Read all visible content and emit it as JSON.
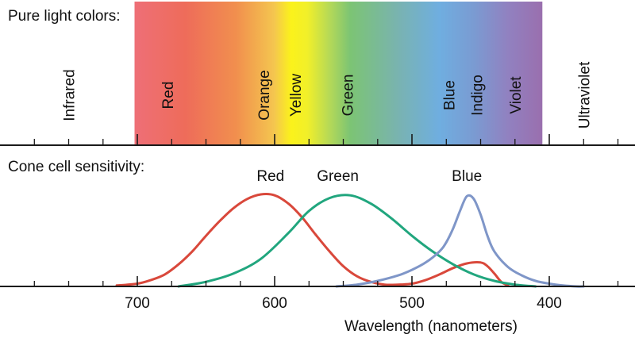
{
  "spectrum_panel": {
    "heading": "Pure light colors:",
    "range_labels": [
      {
        "id": "infrared",
        "text": "Infrared",
        "nm": 750
      },
      {
        "id": "ultraviolet",
        "text": "Ultraviolet",
        "nm": 375
      }
    ],
    "color_labels": [
      {
        "id": "red",
        "text": "Red",
        "nm": 678
      },
      {
        "id": "orange",
        "text": "Orange",
        "nm": 608
      },
      {
        "id": "yellow",
        "text": "Yellow",
        "nm": 585
      },
      {
        "id": "green",
        "text": "Green",
        "nm": 547
      },
      {
        "id": "blue",
        "text": "Blue",
        "nm": 473
      },
      {
        "id": "indigo",
        "text": "Indigo",
        "nm": 453
      },
      {
        "id": "violet",
        "text": "Violet",
        "nm": 425
      }
    ],
    "visible_range_nm": [
      702,
      405
    ],
    "gradient_stops": [
      {
        "nm": 702,
        "color": "#ee6f77"
      },
      {
        "nm": 665,
        "color": "#ee6c5a"
      },
      {
        "nm": 628,
        "color": "#f18f4e"
      },
      {
        "nm": 600,
        "color": "#f4c64f"
      },
      {
        "nm": 588,
        "color": "#fbf21b"
      },
      {
        "nm": 576,
        "color": "#f1ef2a"
      },
      {
        "nm": 560,
        "color": "#b5d957"
      },
      {
        "nm": 545,
        "color": "#7cc474"
      },
      {
        "nm": 510,
        "color": "#79b3b0"
      },
      {
        "nm": 480,
        "color": "#6faee0"
      },
      {
        "nm": 455,
        "color": "#7a9bd2"
      },
      {
        "nm": 430,
        "color": "#9181c0"
      },
      {
        "nm": 405,
        "color": "#9a6fae"
      }
    ]
  },
  "sensitivity_panel": {
    "heading": "Cone cell sensitivity:",
    "curve_labels": [
      {
        "id": "red",
        "text": "Red",
        "nm": 603
      },
      {
        "id": "green",
        "text": "Green",
        "nm": 554
      },
      {
        "id": "blue",
        "text": "Blue",
        "nm": 460
      }
    ]
  },
  "axis": {
    "title": "Wavelength (nanometers)",
    "xlim": [
      800,
      340
    ],
    "major_ticks": [
      700,
      600,
      500,
      400
    ],
    "minor_ticks": [
      775,
      750,
      725,
      675,
      650,
      625,
      575,
      550,
      525,
      475,
      450,
      425,
      375,
      350
    ]
  },
  "chart_data": {
    "type": "line",
    "xlabel": "Wavelength (nanometers)",
    "ylabel": "",
    "xlim": [
      800,
      340
    ],
    "ylim": [
      0,
      1
    ],
    "series": [
      {
        "name": "Red",
        "color": "#d9483b",
        "x": [
          715,
          700,
          690,
          680,
          670,
          660,
          650,
          640,
          630,
          620,
          610,
          600,
          590,
          580,
          570,
          560,
          550,
          540,
          530,
          520,
          510,
          500,
          490,
          480,
          470,
          460,
          450,
          445,
          440,
          435,
          430
        ],
        "y": [
          0.01,
          0.03,
          0.07,
          0.13,
          0.24,
          0.38,
          0.55,
          0.71,
          0.85,
          0.95,
          1.0,
          0.99,
          0.9,
          0.75,
          0.56,
          0.38,
          0.22,
          0.11,
          0.05,
          0.02,
          0.02,
          0.03,
          0.07,
          0.13,
          0.2,
          0.25,
          0.26,
          0.22,
          0.14,
          0.05,
          0.01
        ]
      },
      {
        "name": "Green",
        "color": "#21a67e",
        "x": [
          670,
          650,
          630,
          610,
          590,
          575,
          560,
          545,
          530,
          515,
          500,
          485,
          470,
          455,
          440,
          425,
          410
        ],
        "y": [
          0.0,
          0.05,
          0.14,
          0.3,
          0.58,
          0.82,
          0.96,
          0.99,
          0.9,
          0.74,
          0.55,
          0.38,
          0.24,
          0.13,
          0.06,
          0.02,
          0.0
        ]
      },
      {
        "name": "Blue",
        "color": "#7f96c8",
        "x": [
          555,
          540,
          525,
          510,
          500,
          490,
          480,
          475,
          470,
          465,
          460,
          455,
          450,
          445,
          440,
          430,
          420,
          410,
          400,
          390,
          380,
          375
        ],
        "y": [
          0.0,
          0.02,
          0.06,
          0.12,
          0.18,
          0.26,
          0.38,
          0.48,
          0.63,
          0.82,
          0.98,
          0.95,
          0.78,
          0.55,
          0.38,
          0.21,
          0.12,
          0.06,
          0.03,
          0.01,
          0.0,
          0.0
        ]
      }
    ]
  }
}
